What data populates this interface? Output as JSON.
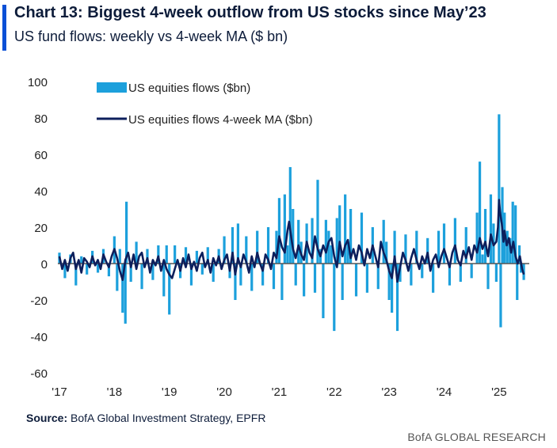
{
  "header": {
    "title": "Chart 13: Biggest 4-week outflow from US stocks since May’23",
    "subtitle": "US fund flows: weekly vs 4-week MA ($ bn)"
  },
  "footer": {
    "source_label": "Source:",
    "source_text": " BofA Global Investment Strategy, EPFR",
    "brand": "BofA GLOBAL RESEARCH"
  },
  "colors": {
    "bars": "#1ca0dc",
    "ma_line": "#0d1f5c",
    "axis_line": "#555555",
    "accent": "#0a4fd6"
  },
  "chart_data": {
    "type": "bar",
    "title": "US fund flows: weekly vs 4-week MA ($ bn)",
    "xlabel": "",
    "ylabel": "",
    "ylim": [
      -60,
      100
    ],
    "yticks": [
      "100",
      "80",
      "60",
      "40",
      "20",
      "0",
      "-20",
      "-40",
      "-60"
    ],
    "xticks": [
      "'17",
      "'18",
      "'19",
      "'20",
      "'21",
      "'22",
      "'23",
      "'24",
      "'25"
    ],
    "x_range": [
      2017.0,
      2025.55
    ],
    "grid": false,
    "legend_position": "top-left",
    "series": [
      {
        "name": "US equities flows ($bn)",
        "kind": "bar",
        "points": [
          [
            2017.0,
            6
          ],
          [
            2017.1,
            -8
          ],
          [
            2017.2,
            5
          ],
          [
            2017.3,
            -12
          ],
          [
            2017.4,
            4
          ],
          [
            2017.5,
            -6
          ],
          [
            2017.6,
            7
          ],
          [
            2017.7,
            -5
          ],
          [
            2017.8,
            8
          ],
          [
            2017.9,
            -7
          ],
          [
            2018.0,
            15
          ],
          [
            2018.05,
            -15
          ],
          [
            2018.1,
            8
          ],
          [
            2018.15,
            -27
          ],
          [
            2018.2,
            -33
          ],
          [
            2018.22,
            34
          ],
          [
            2018.3,
            -10
          ],
          [
            2018.4,
            12
          ],
          [
            2018.5,
            -14
          ],
          [
            2018.6,
            8
          ],
          [
            2018.7,
            -9
          ],
          [
            2018.8,
            10
          ],
          [
            2018.9,
            -18
          ],
          [
            2018.95,
            10
          ],
          [
            2019.0,
            -28
          ],
          [
            2019.1,
            10
          ],
          [
            2019.2,
            -8
          ],
          [
            2019.3,
            9
          ],
          [
            2019.4,
            -12
          ],
          [
            2019.5,
            7
          ],
          [
            2019.6,
            -6
          ],
          [
            2019.7,
            9
          ],
          [
            2019.8,
            -10
          ],
          [
            2019.9,
            8
          ],
          [
            2020.0,
            15
          ],
          [
            2020.1,
            -8
          ],
          [
            2020.15,
            20
          ],
          [
            2020.2,
            -20
          ],
          [
            2020.25,
            22
          ],
          [
            2020.3,
            -12
          ],
          [
            2020.4,
            15
          ],
          [
            2020.5,
            -15
          ],
          [
            2020.6,
            18
          ],
          [
            2020.7,
            -12
          ],
          [
            2020.8,
            20
          ],
          [
            2020.9,
            -14
          ],
          [
            2020.95,
            18
          ],
          [
            2021.0,
            36
          ],
          [
            2021.05,
            -20
          ],
          [
            2021.1,
            38
          ],
          [
            2021.15,
            10
          ],
          [
            2021.2,
            53
          ],
          [
            2021.25,
            30
          ],
          [
            2021.3,
            -12
          ],
          [
            2021.35,
            24
          ],
          [
            2021.4,
            12
          ],
          [
            2021.45,
            -18
          ],
          [
            2021.5,
            22
          ],
          [
            2021.6,
            25
          ],
          [
            2021.65,
            -16
          ],
          [
            2021.7,
            46
          ],
          [
            2021.75,
            8
          ],
          [
            2021.8,
            -30
          ],
          [
            2021.85,
            24
          ],
          [
            2021.9,
            18
          ],
          [
            2021.95,
            10
          ],
          [
            2022.0,
            -37
          ],
          [
            2022.05,
            25
          ],
          [
            2022.1,
            32
          ],
          [
            2022.15,
            -20
          ],
          [
            2022.2,
            38
          ],
          [
            2022.25,
            12
          ],
          [
            2022.3,
            30
          ],
          [
            2022.4,
            -18
          ],
          [
            2022.5,
            28
          ],
          [
            2022.6,
            -16
          ],
          [
            2022.7,
            20
          ],
          [
            2022.8,
            -14
          ],
          [
            2022.9,
            24
          ],
          [
            2022.95,
            12
          ],
          [
            2023.0,
            -20
          ],
          [
            2023.05,
            -27
          ],
          [
            2023.1,
            18
          ],
          [
            2023.15,
            -37
          ],
          [
            2023.2,
            -10
          ],
          [
            2023.3,
            16
          ],
          [
            2023.4,
            -12
          ],
          [
            2023.5,
            18
          ],
          [
            2023.6,
            -8
          ],
          [
            2023.7,
            14
          ],
          [
            2023.8,
            -16
          ],
          [
            2023.9,
            18
          ],
          [
            2024.0,
            22
          ],
          [
            2024.1,
            -12
          ],
          [
            2024.2,
            25
          ],
          [
            2024.3,
            -10
          ],
          [
            2024.4,
            20
          ],
          [
            2024.5,
            -8
          ],
          [
            2024.6,
            28
          ],
          [
            2024.65,
            56
          ],
          [
            2024.7,
            5
          ],
          [
            2024.75,
            30
          ],
          [
            2024.8,
            -14
          ],
          [
            2024.85,
            38
          ],
          [
            2024.9,
            22
          ],
          [
            2024.95,
            -10
          ],
          [
            2025.0,
            82
          ],
          [
            2025.03,
            -35
          ],
          [
            2025.06,
            42
          ],
          [
            2025.1,
            28
          ],
          [
            2025.15,
            18
          ],
          [
            2025.2,
            14
          ],
          [
            2025.25,
            34
          ],
          [
            2025.3,
            32
          ],
          [
            2025.33,
            -20
          ],
          [
            2025.37,
            10
          ],
          [
            2025.4,
            -5
          ],
          [
            2025.45,
            -9
          ]
        ]
      },
      {
        "name": "US equities flows 4-week MA ($bn)",
        "kind": "line",
        "points": [
          [
            2017.0,
            4
          ],
          [
            2017.05,
            -3
          ],
          [
            2017.1,
            2
          ],
          [
            2017.15,
            -4
          ],
          [
            2017.2,
            3
          ],
          [
            2017.25,
            6
          ],
          [
            2017.3,
            -3
          ],
          [
            2017.35,
            2
          ],
          [
            2017.4,
            -5
          ],
          [
            2017.45,
            3
          ],
          [
            2017.5,
            1
          ],
          [
            2017.55,
            -2
          ],
          [
            2017.6,
            4
          ],
          [
            2017.65,
            -1
          ],
          [
            2017.7,
            2
          ],
          [
            2017.75,
            -3
          ],
          [
            2017.8,
            5
          ],
          [
            2017.85,
            1
          ],
          [
            2017.9,
            -2
          ],
          [
            2017.95,
            4
          ],
          [
            2018.0,
            8
          ],
          [
            2018.05,
            3
          ],
          [
            2018.1,
            -4
          ],
          [
            2018.15,
            -9
          ],
          [
            2018.2,
            2
          ],
          [
            2018.25,
            6
          ],
          [
            2018.3,
            -2
          ],
          [
            2018.35,
            5
          ],
          [
            2018.4,
            -3
          ],
          [
            2018.45,
            4
          ],
          [
            2018.5,
            6
          ],
          [
            2018.55,
            -2
          ],
          [
            2018.6,
            3
          ],
          [
            2018.65,
            -5
          ],
          [
            2018.7,
            2
          ],
          [
            2018.75,
            -1
          ],
          [
            2018.8,
            4
          ],
          [
            2018.85,
            -4
          ],
          [
            2018.9,
            2
          ],
          [
            2018.95,
            -3
          ],
          [
            2019.0,
            -6
          ],
          [
            2019.05,
            -8
          ],
          [
            2019.1,
            -3
          ],
          [
            2019.15,
            2
          ],
          [
            2019.2,
            -4
          ],
          [
            2019.25,
            3
          ],
          [
            2019.3,
            -2
          ],
          [
            2019.35,
            5
          ],
          [
            2019.4,
            -3
          ],
          [
            2019.45,
            1
          ],
          [
            2019.5,
            -4
          ],
          [
            2019.55,
            3
          ],
          [
            2019.6,
            6
          ],
          [
            2019.65,
            -2
          ],
          [
            2019.7,
            2
          ],
          [
            2019.75,
            -5
          ],
          [
            2019.8,
            3
          ],
          [
            2019.85,
            -1
          ],
          [
            2019.9,
            4
          ],
          [
            2019.95,
            -3
          ],
          [
            2020.0,
            2
          ],
          [
            2020.05,
            5
          ],
          [
            2020.1,
            -4
          ],
          [
            2020.15,
            6
          ],
          [
            2020.2,
            -6
          ],
          [
            2020.25,
            3
          ],
          [
            2020.3,
            -2
          ],
          [
            2020.35,
            5
          ],
          [
            2020.4,
            1
          ],
          [
            2020.45,
            -5
          ],
          [
            2020.5,
            4
          ],
          [
            2020.55,
            -2
          ],
          [
            2020.6,
            6
          ],
          [
            2020.65,
            0
          ],
          [
            2020.7,
            -4
          ],
          [
            2020.75,
            5
          ],
          [
            2020.8,
            2
          ],
          [
            2020.85,
            -3
          ],
          [
            2020.9,
            6
          ],
          [
            2020.95,
            3
          ],
          [
            2021.0,
            15
          ],
          [
            2021.05,
            9
          ],
          [
            2021.1,
            6
          ],
          [
            2021.15,
            18
          ],
          [
            2021.18,
            23
          ],
          [
            2021.22,
            14
          ],
          [
            2021.25,
            8
          ],
          [
            2021.3,
            3
          ],
          [
            2021.35,
            10
          ],
          [
            2021.4,
            5
          ],
          [
            2021.45,
            2
          ],
          [
            2021.5,
            12
          ],
          [
            2021.55,
            6
          ],
          [
            2021.6,
            3
          ],
          [
            2021.65,
            15
          ],
          [
            2021.7,
            8
          ],
          [
            2021.75,
            4
          ],
          [
            2021.8,
            10
          ],
          [
            2021.85,
            6
          ],
          [
            2021.9,
            12
          ],
          [
            2021.95,
            14
          ],
          [
            2022.0,
            4
          ],
          [
            2022.05,
            -2
          ],
          [
            2022.1,
            12
          ],
          [
            2022.15,
            4
          ],
          [
            2022.2,
            10
          ],
          [
            2022.25,
            13
          ],
          [
            2022.3,
            3
          ],
          [
            2022.35,
            8
          ],
          [
            2022.4,
            2
          ],
          [
            2022.45,
            10
          ],
          [
            2022.5,
            6
          ],
          [
            2022.55,
            -1
          ],
          [
            2022.6,
            8
          ],
          [
            2022.65,
            3
          ],
          [
            2022.7,
            10
          ],
          [
            2022.75,
            4
          ],
          [
            2022.8,
            -2
          ],
          [
            2022.85,
            12
          ],
          [
            2022.9,
            6
          ],
          [
            2022.95,
            2
          ],
          [
            2023.0,
            -4
          ],
          [
            2023.05,
            -8
          ],
          [
            2023.1,
            4
          ],
          [
            2023.15,
            -10
          ],
          [
            2023.2,
            -2
          ],
          [
            2023.25,
            6
          ],
          [
            2023.3,
            2
          ],
          [
            2023.35,
            -4
          ],
          [
            2023.4,
            3
          ],
          [
            2023.45,
            8
          ],
          [
            2023.5,
            2
          ],
          [
            2023.55,
            -3
          ],
          [
            2023.6,
            4
          ],
          [
            2023.65,
            0
          ],
          [
            2023.7,
            6
          ],
          [
            2023.75,
            -4
          ],
          [
            2023.8,
            2
          ],
          [
            2023.85,
            5
          ],
          [
            2023.9,
            -2
          ],
          [
            2023.95,
            4
          ],
          [
            2024.0,
            8
          ],
          [
            2024.05,
            3
          ],
          [
            2024.1,
            -2
          ],
          [
            2024.15,
            6
          ],
          [
            2024.2,
            10
          ],
          [
            2024.25,
            2
          ],
          [
            2024.3,
            -1
          ],
          [
            2024.35,
            7
          ],
          [
            2024.4,
            3
          ],
          [
            2024.45,
            9
          ],
          [
            2024.5,
            2
          ],
          [
            2024.55,
            10
          ],
          [
            2024.6,
            6
          ],
          [
            2024.65,
            14
          ],
          [
            2024.7,
            8
          ],
          [
            2024.75,
            12
          ],
          [
            2024.8,
            4
          ],
          [
            2024.85,
            16
          ],
          [
            2024.9,
            10
          ],
          [
            2024.95,
            12
          ],
          [
            2024.98,
            20
          ],
          [
            2025.0,
            35
          ],
          [
            2025.02,
            28
          ],
          [
            2025.05,
            22
          ],
          [
            2025.08,
            12
          ],
          [
            2025.1,
            18
          ],
          [
            2025.14,
            10
          ],
          [
            2025.18,
            14
          ],
          [
            2025.22,
            6
          ],
          [
            2025.26,
            12
          ],
          [
            2025.3,
            4
          ],
          [
            2025.34,
            0
          ],
          [
            2025.38,
            4
          ],
          [
            2025.42,
            -3
          ],
          [
            2025.45,
            -6
          ]
        ]
      }
    ]
  }
}
